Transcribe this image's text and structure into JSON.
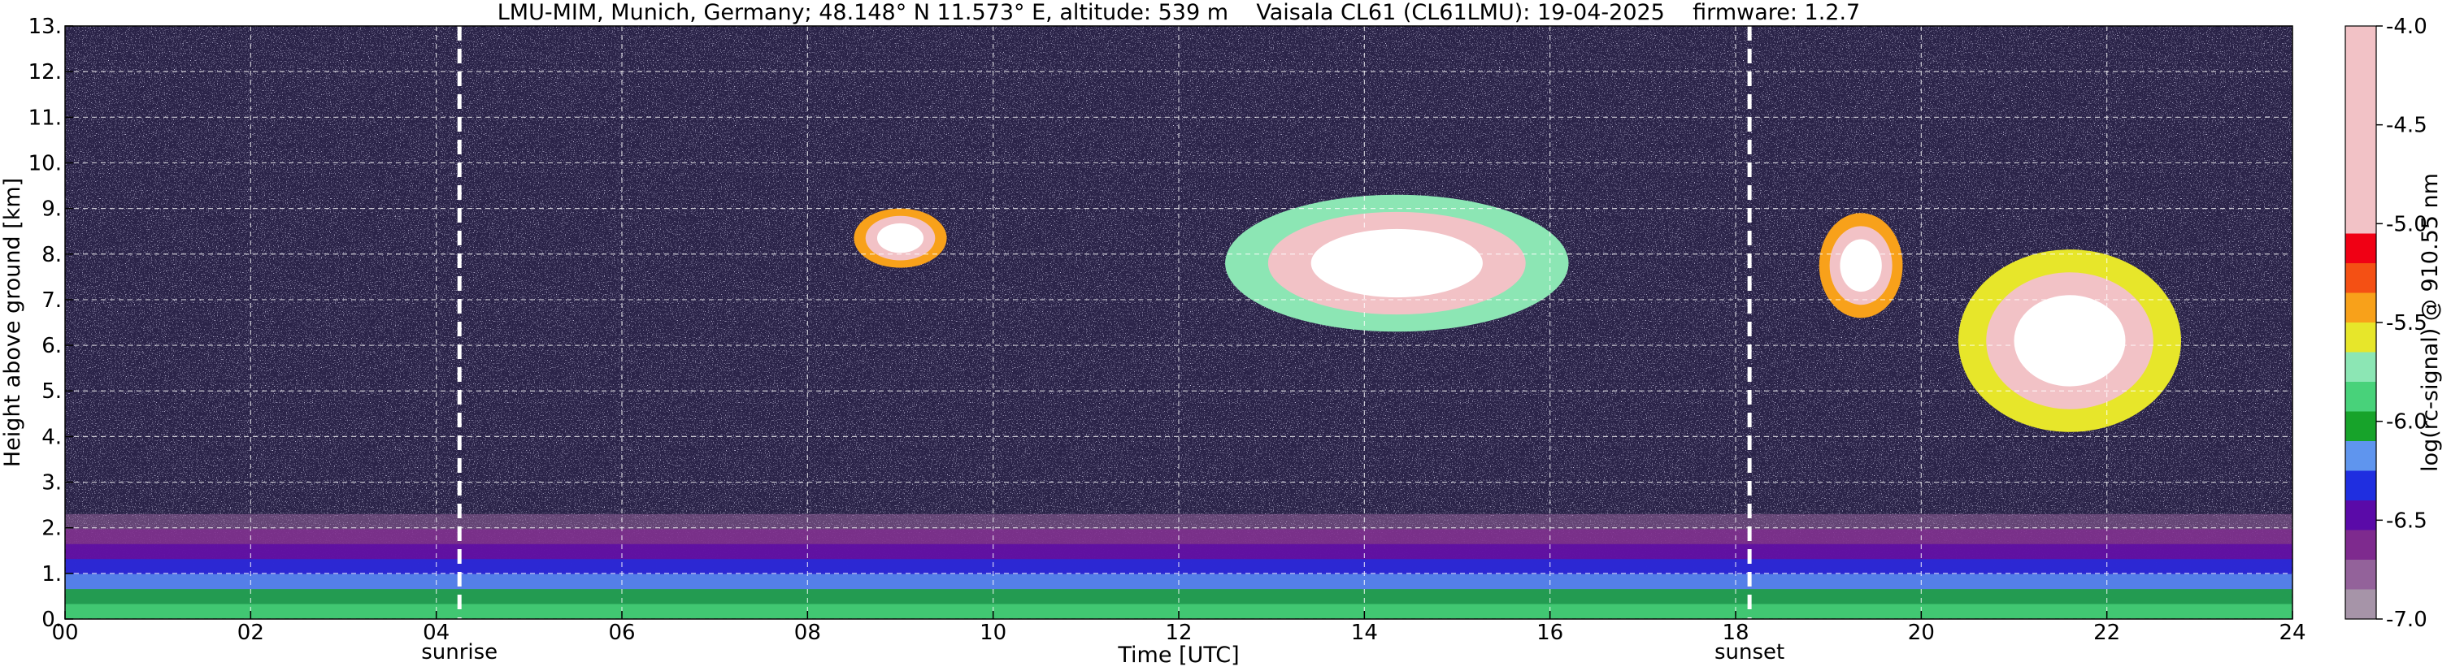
{
  "chart_data": {
    "type": "heatmap",
    "title": "LMU-MIM, Munich, Germany; 48.148° N 11.573° E, altitude: 539 m    Vaisala CL61 (CL61LMU): 19-04-2025    firmware: 1.2.7",
    "xlabel": "Time [UTC]",
    "ylabel": "Height above ground [km]",
    "xlim": [
      0,
      24
    ],
    "ylim": [
      0,
      13
    ],
    "x_ticks": [
      0,
      2,
      4,
      6,
      8,
      10,
      12,
      14,
      16,
      18,
      20,
      22,
      24
    ],
    "x_tick_labels": [
      "00",
      "02",
      "04",
      "06",
      "08",
      "10",
      "12",
      "14",
      "16",
      "18",
      "20",
      "22",
      "24"
    ],
    "y_ticks": [
      0,
      1,
      2,
      3,
      4,
      5,
      6,
      7,
      8,
      9,
      10,
      11,
      12,
      13
    ],
    "y_tick_labels": [
      "0.",
      "1.",
      "2.",
      "3.",
      "4.",
      "5.",
      "6.",
      "7.",
      "8.",
      "9.",
      "10.",
      "11.",
      "12.",
      "13."
    ],
    "grid": true,
    "markers": [
      {
        "time": 4.25,
        "label": "sunrise"
      },
      {
        "time": 18.15,
        "label": "sunset"
      }
    ],
    "colorbar": {
      "label": "log(rc-signal) @ 910.55 nm",
      "range": [
        -7.0,
        -4.0
      ],
      "ticks": [
        -7.0,
        -6.5,
        -6.0,
        -5.5,
        -5.0,
        -4.5,
        -4.0
      ],
      "tick_labels": [
        "-7.0",
        "-6.5",
        "-6.0",
        "-5.5",
        "-5.0",
        "-4.5",
        "-4.0"
      ]
    },
    "features": [
      {
        "feature": "aerosol boundary layer",
        "time": [
          0,
          24
        ],
        "height_km": [
          0,
          2.3
        ],
        "log_signal": [
          -6.8,
          -5.9
        ]
      },
      {
        "feature": "cloud",
        "time": [
          8.5,
          9.5
        ],
        "height_km": [
          7.7,
          9.0
        ],
        "log_signal": [
          -5.5,
          -4.0
        ]
      },
      {
        "feature": "cloud",
        "time": [
          12.5,
          16.2
        ],
        "height_km": [
          6.3,
          9.3
        ],
        "log_signal": [
          -5.8,
          -4.0
        ]
      },
      {
        "feature": "cloud",
        "time": [
          18.9,
          19.8
        ],
        "height_km": [
          6.6,
          8.9
        ],
        "log_signal": [
          -5.5,
          -4.0
        ]
      },
      {
        "feature": "cloud",
        "time": [
          20.4,
          22.8
        ],
        "height_km": [
          4.1,
          8.1
        ],
        "log_signal": [
          -5.6,
          -4.0
        ]
      }
    ]
  }
}
